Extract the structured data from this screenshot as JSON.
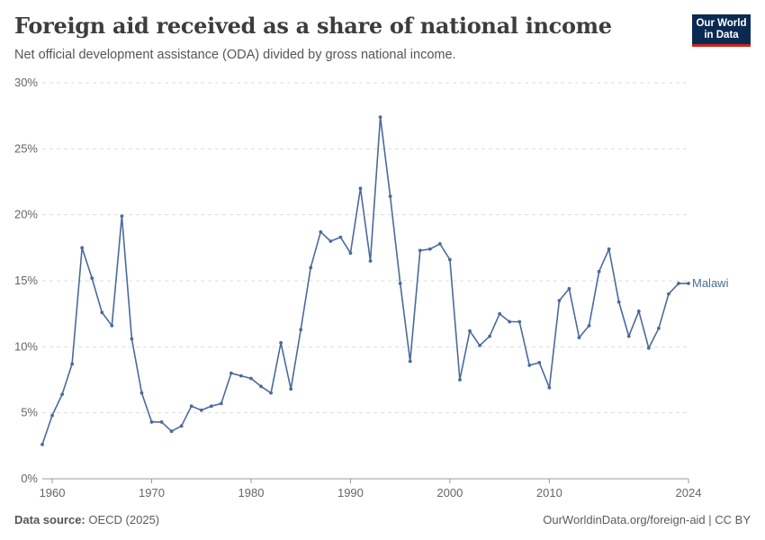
{
  "header": {
    "title": "Foreign aid received as a share of national income",
    "subtitle": "Net official development assistance (ODA) divided by gross national income.",
    "logo_line1": "Our World",
    "logo_line2": "in Data"
  },
  "footer": {
    "source_label": "Data source:",
    "source_value": "OECD (2025)",
    "attribution": "OurWorldinData.org/foreign-aid | CC BY"
  },
  "colors": {
    "series": "#4c6a9c",
    "grid": "#dddddd",
    "logo_bg": "#0b2a52",
    "logo_accent": "#ce261e"
  },
  "chart_data": {
    "type": "line",
    "title": "Foreign aid received as a share of national income",
    "ylim": [
      0,
      30
    ],
    "xlim": [
      1959,
      2024
    ],
    "y_ticks": [
      0,
      5,
      10,
      15,
      20,
      25,
      30
    ],
    "y_tick_labels": [
      "0%",
      "5%",
      "10%",
      "15%",
      "20%",
      "25%",
      "30%"
    ],
    "x_ticks": [
      1960,
      1970,
      1980,
      1990,
      2000,
      2010,
      2024
    ],
    "x_tick_labels": [
      "1960",
      "1970",
      "1980",
      "1990",
      "2000",
      "2010",
      "2024"
    ],
    "grid": "horizontal dashed",
    "legend": "inline label at end of line",
    "series": [
      {
        "name": "Malawi",
        "x": [
          1959,
          1960,
          1961,
          1962,
          1963,
          1964,
          1965,
          1966,
          1967,
          1968,
          1969,
          1970,
          1971,
          1972,
          1973,
          1974,
          1975,
          1976,
          1977,
          1978,
          1979,
          1980,
          1981,
          1982,
          1983,
          1984,
          1985,
          1986,
          1987,
          1988,
          1989,
          1990,
          1991,
          1992,
          1993,
          1994,
          1995,
          1996,
          1997,
          1998,
          1999,
          2000,
          2001,
          2002,
          2003,
          2004,
          2005,
          2006,
          2007,
          2008,
          2009,
          2010,
          2011,
          2012,
          2013,
          2014,
          2015,
          2016,
          2017,
          2018,
          2019,
          2020,
          2021,
          2022,
          2023,
          2024
        ],
        "values": [
          2.6,
          4.8,
          6.4,
          8.7,
          17.5,
          15.2,
          12.6,
          11.6,
          19.9,
          10.6,
          6.5,
          4.3,
          4.3,
          3.6,
          4.0,
          5.5,
          5.2,
          5.5,
          5.7,
          8.0,
          7.8,
          7.6,
          7.0,
          6.5,
          10.3,
          6.8,
          11.3,
          16.0,
          18.7,
          18.0,
          18.3,
          17.1,
          22.0,
          16.5,
          27.4,
          21.4,
          14.8,
          8.9,
          17.3,
          17.4,
          17.8,
          16.6,
          7.5,
          11.2,
          10.1,
          10.8,
          12.5,
          11.9,
          11.9,
          8.6,
          8.8,
          6.9,
          13.5,
          14.4,
          10.7,
          11.6,
          15.7,
          17.4,
          13.4,
          10.8,
          12.7,
          9.9,
          11.4,
          14.0,
          14.8,
          14.8
        ]
      }
    ]
  }
}
